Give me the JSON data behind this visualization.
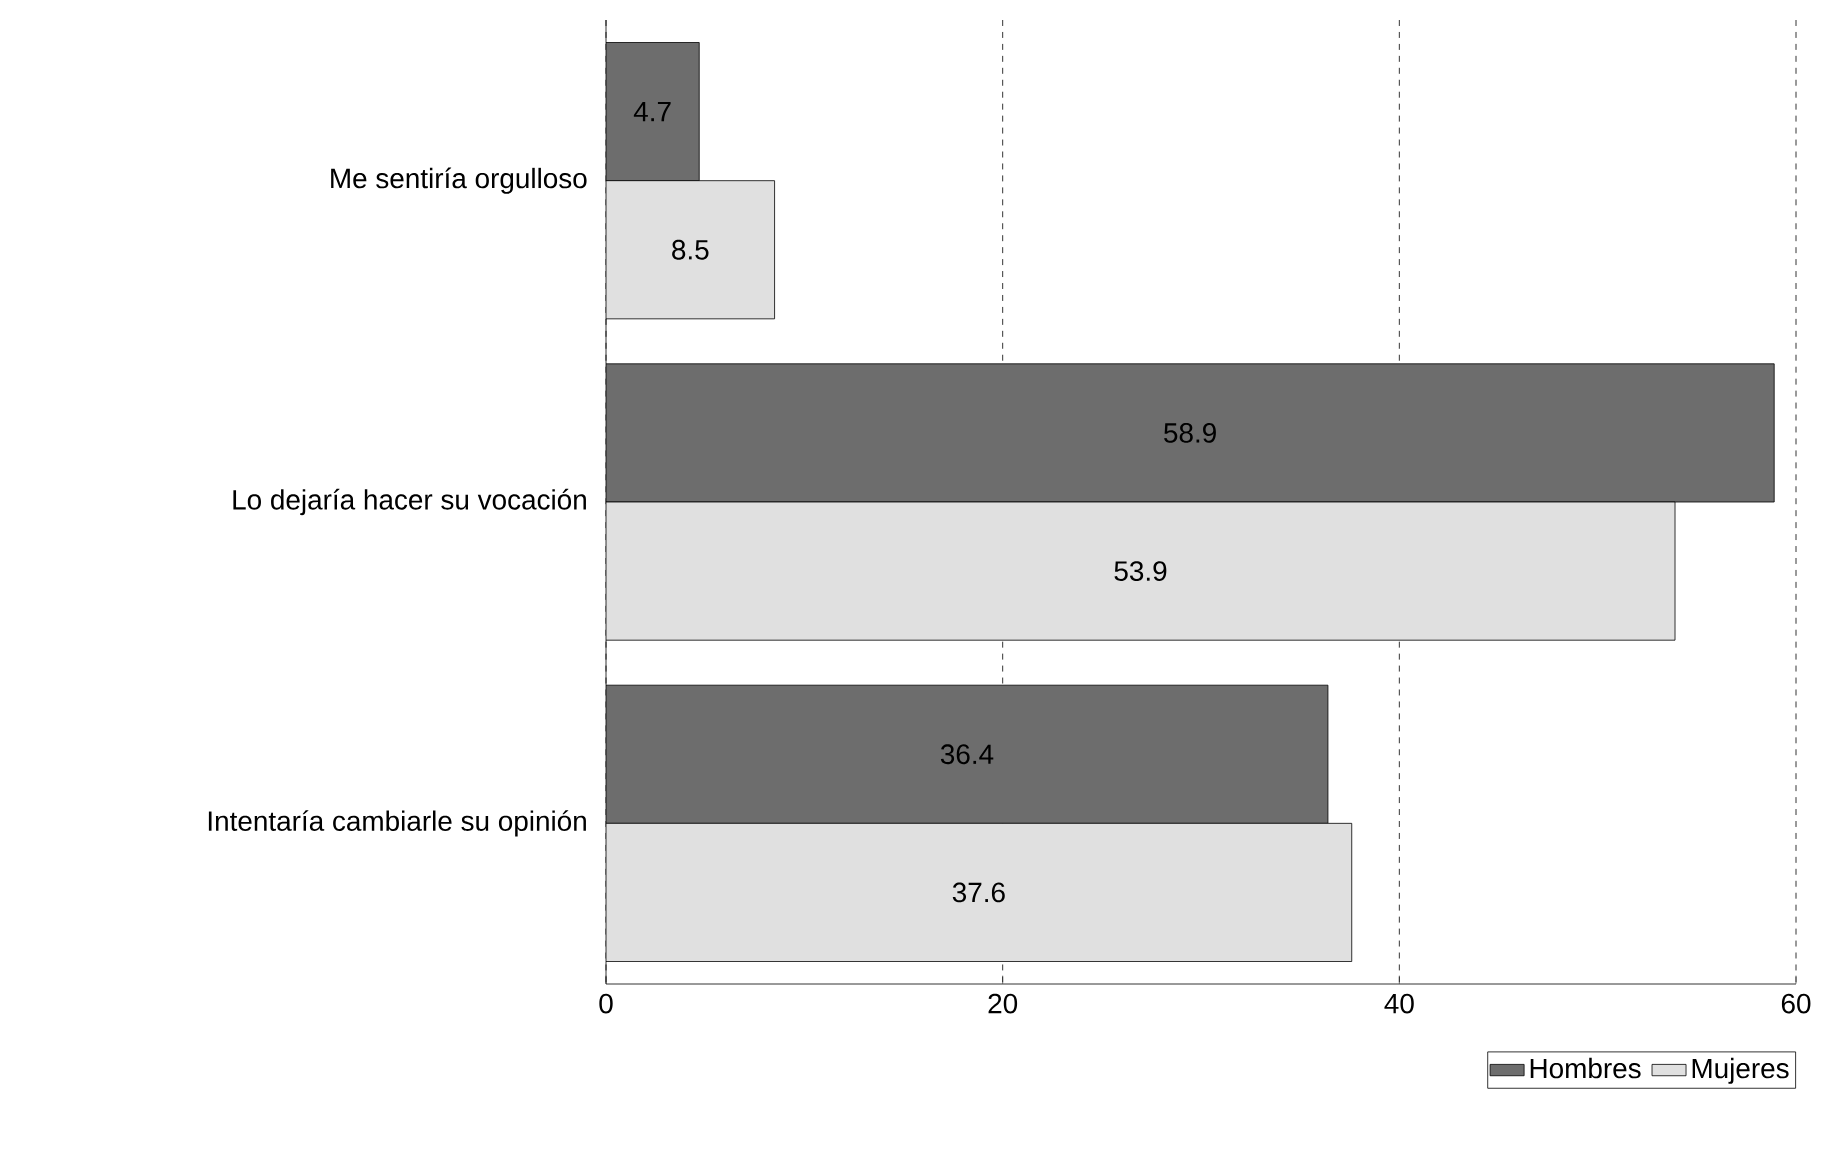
{
  "chart_data": {
    "type": "bar",
    "orientation": "horizontal",
    "categories": [
      "Me sentiría orgulloso",
      "Lo dejaría hacer su vocación",
      "Intentaría cambiarle su opinión"
    ],
    "series": [
      {
        "name": "Hombres",
        "color": "#6d6d6d",
        "values": [
          4.7,
          58.9,
          36.4
        ]
      },
      {
        "name": "Mujeres",
        "color": "#e0e0e0",
        "values": [
          8.5,
          53.9,
          37.6
        ]
      }
    ],
    "xlim": [
      0,
      60
    ],
    "xticks": [
      0,
      20,
      40,
      60
    ],
    "grid": "x",
    "legend": "bottom right",
    "data_labels": true
  }
}
